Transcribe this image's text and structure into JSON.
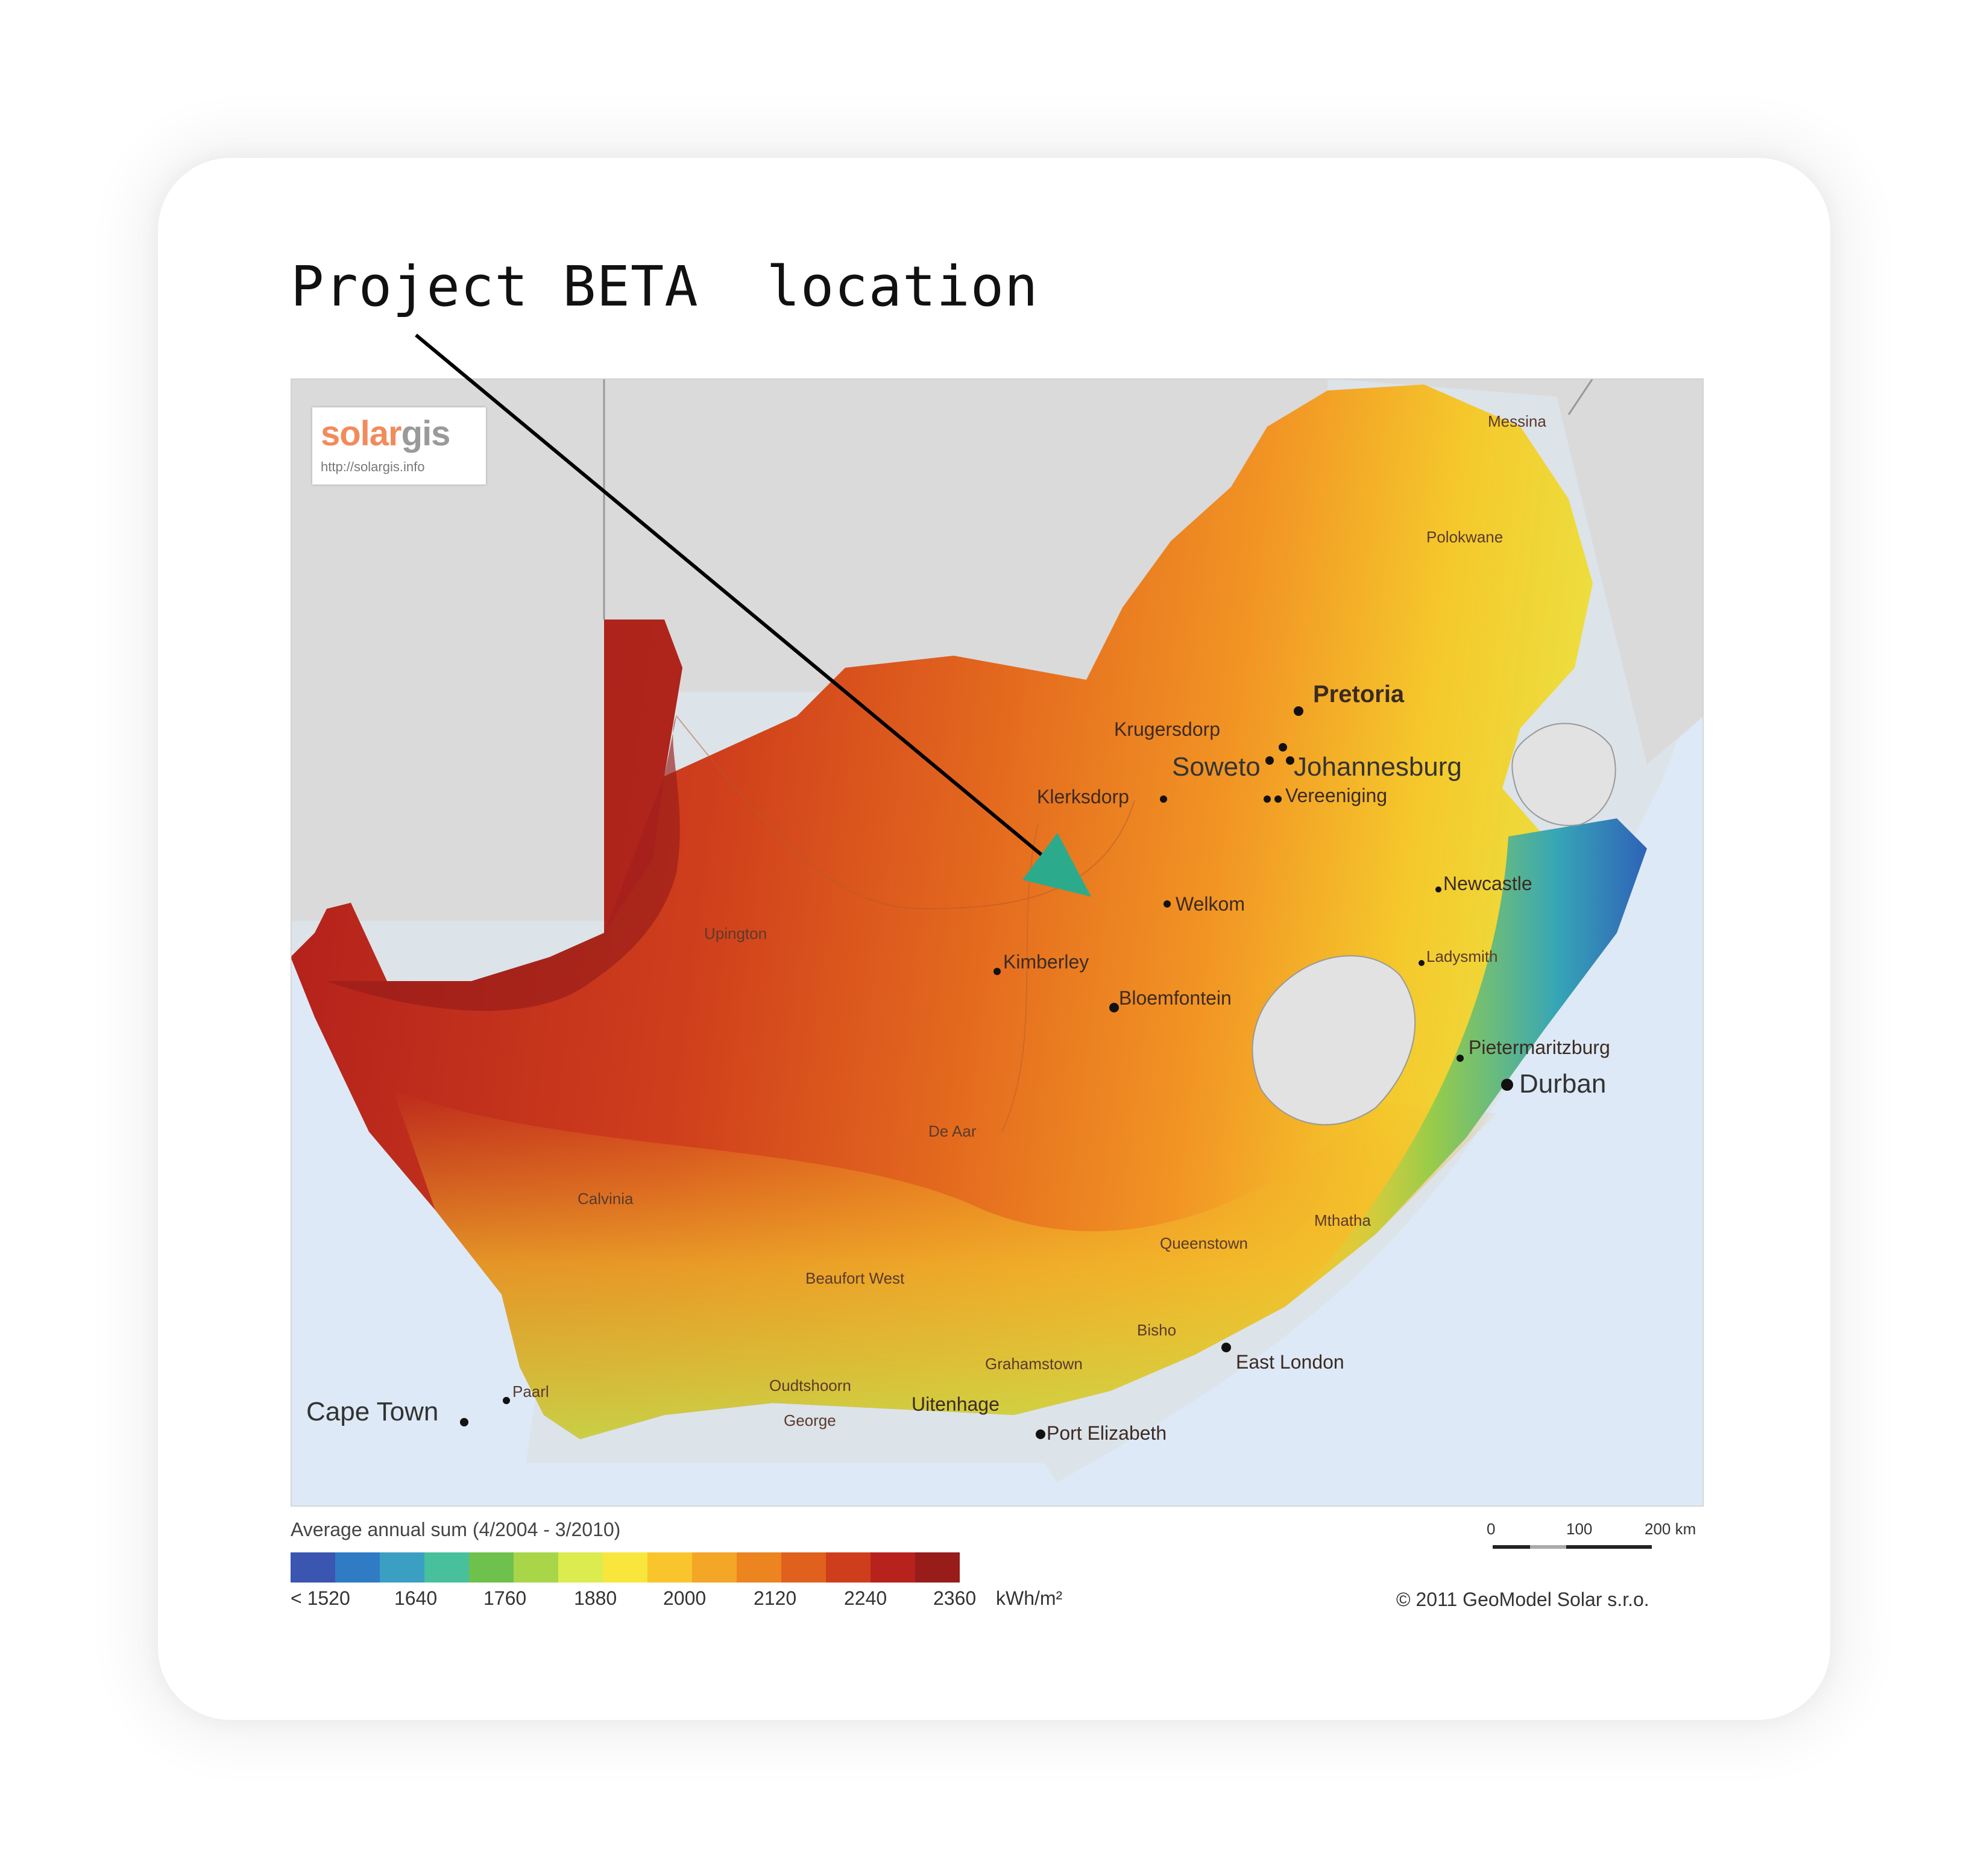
{
  "annotation": {
    "label": "Project BETA  location",
    "arrow_color": "#000000",
    "arrowhead_color": "#2bab8c"
  },
  "logo": {
    "brand_a": "solar",
    "brand_b": "gis",
    "url": "http://solargis.info"
  },
  "cities": {
    "messina": "Messina",
    "polokwane": "Polokwane",
    "pretoria": "Pretoria",
    "krugersdorp": "Krugersdorp",
    "soweto": "Soweto",
    "johannesburg": "Johannesburg",
    "klerksdorp": "Klerksdorp",
    "vereeniging": "Vereeniging",
    "newcastle": "Newcastle",
    "welkom": "Welkom",
    "ladysmith": "Ladysmith",
    "upington": "Upington",
    "kimberley": "Kimberley",
    "bloemfontein": "Bloemfontein",
    "pietermaritzburg": "Pietermaritzburg",
    "durban": "Durban",
    "de_aar": "De Aar",
    "calvinia": "Calvinia",
    "mthatha": "Mthatha",
    "queenstown": "Queenstown",
    "beaufort_west": "Beaufort West",
    "bisho": "Bisho",
    "east_london": "East London",
    "grahamstown": "Grahamstown",
    "oudtshoorn": "Oudtshoorn",
    "paarl": "Paarl",
    "cape_town": "Cape Town",
    "george": "George",
    "uitenhage": "Uitenhage",
    "port_elizabeth": "Port Elizabeth"
  },
  "legend": {
    "title": "Average annual sum (4/2004 - 3/2010)",
    "ticks": [
      "< 1520",
      "1640",
      "1760",
      "1880",
      "2000",
      "2120",
      "2240",
      "2360"
    ],
    "unit": "kWh/m²",
    "colors": [
      "#3a56b0",
      "#2f7cc4",
      "#3a9fc2",
      "#48c09c",
      "#6ec14d",
      "#a8d648",
      "#dcec4e",
      "#f8e63c",
      "#f8c52c",
      "#f4a626",
      "#ec8420",
      "#e0611e",
      "#cf3e1c",
      "#b8221c",
      "#971c1a"
    ]
  },
  "scale_bar": {
    "zero": "0",
    "mid": "100",
    "end": "200 km"
  },
  "copyright": "© 2011 GeoModel Solar s.r.o."
}
